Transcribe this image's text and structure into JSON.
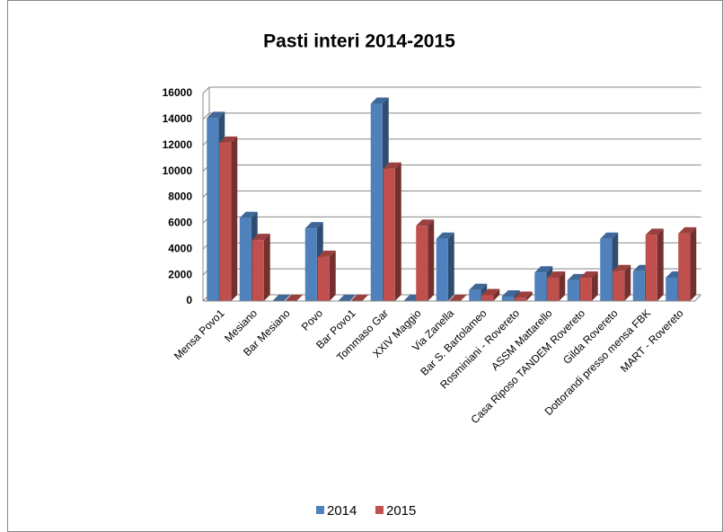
{
  "chart_data": {
    "type": "bar3d",
    "title": "Pasti interi 2014-2015",
    "categories": [
      "Mensa Povo1",
      "Mesiano",
      "Bar Mesiano",
      "Povo",
      "Bar Povo1",
      "Tommaso Gar",
      "XXIV Maggio",
      "Via Zanella",
      "Bar S. Bartolameo",
      "Rosminiani - Rovereto",
      "ASSM Mattarello",
      "Casa Riposo TANDEM Rovereto",
      "Gilda Rovereto",
      "Dottorandi presso mensa FBK",
      "MART - Rovereto"
    ],
    "series": [
      {
        "name": "2014",
        "color": "#4f81bd",
        "values": [
          14100,
          6400,
          0,
          5600,
          0,
          15200,
          0,
          4800,
          850,
          350,
          2200,
          1600,
          4800,
          2300,
          1800
        ]
      },
      {
        "name": "2015",
        "color": "#c0504d",
        "values": [
          12200,
          4700,
          0,
          3400,
          0,
          10200,
          5800,
          0,
          450,
          250,
          1800,
          1800,
          2300,
          5100,
          5200
        ]
      }
    ],
    "ylim": [
      0,
      16000
    ],
    "yticks": [
      0,
      2000,
      4000,
      6000,
      8000,
      10000,
      12000,
      14000,
      16000
    ],
    "grid": true,
    "legend": "bottom"
  }
}
